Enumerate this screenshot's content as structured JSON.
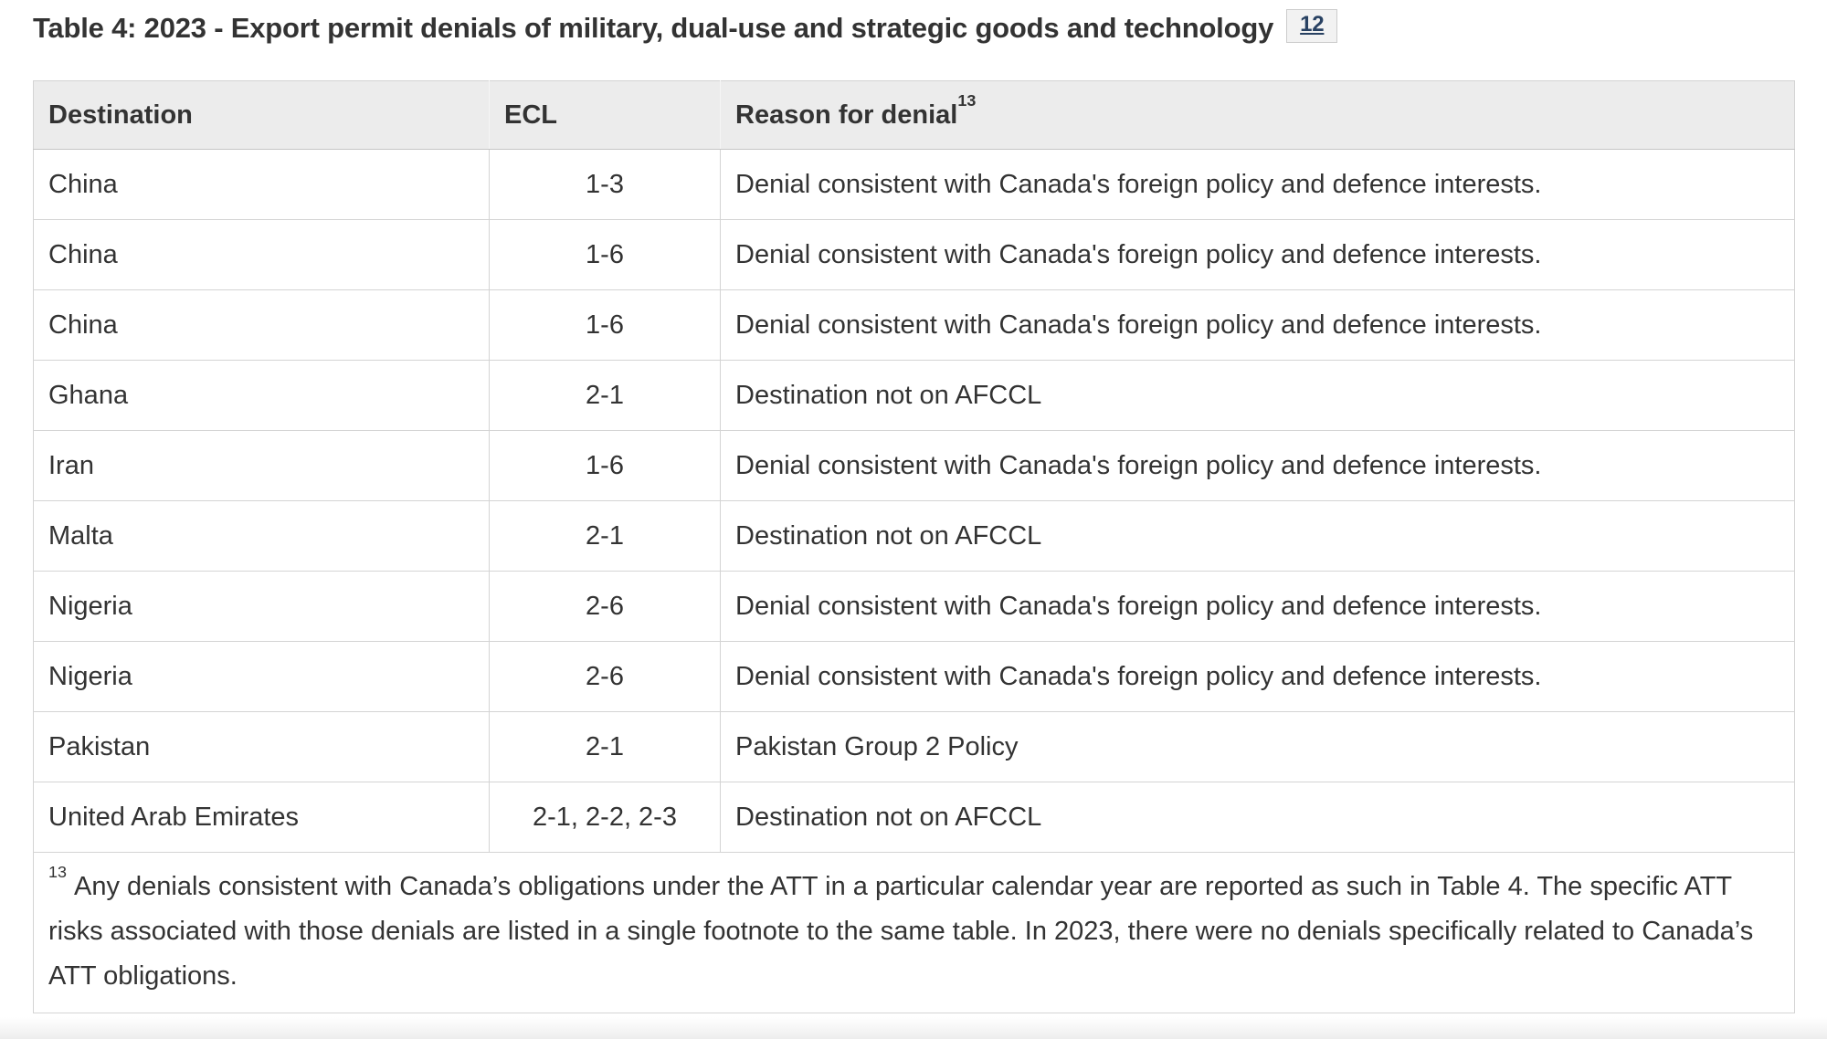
{
  "page": {
    "title": "Table 4: 2023 - Export permit denials of military, dual-use and strategic goods and technology",
    "title_footnote_link": "12"
  },
  "table": {
    "headers": {
      "destination": "Destination",
      "ecl": "ECL",
      "reason": "Reason for denial",
      "reason_sup": "13"
    },
    "rows": [
      {
        "destination": "China",
        "ecl": "1-3",
        "reason": "Denial consistent with Canada's foreign policy and defence interests."
      },
      {
        "destination": "China",
        "ecl": "1-6",
        "reason": "Denial consistent with Canada's foreign policy and defence interests."
      },
      {
        "destination": "China",
        "ecl": "1-6",
        "reason": "Denial consistent with Canada's foreign policy and defence interests."
      },
      {
        "destination": "Ghana",
        "ecl": "2-1",
        "reason": "Destination not on AFCCL"
      },
      {
        "destination": "Iran",
        "ecl": "1-6",
        "reason": "Denial consistent with Canada's foreign policy and defence interests."
      },
      {
        "destination": "Malta",
        "ecl": "2-1",
        "reason": "Destination not on AFCCL"
      },
      {
        "destination": "Nigeria",
        "ecl": "2-6",
        "reason": "Denial consistent with Canada's foreign policy and defence interests."
      },
      {
        "destination": "Nigeria",
        "ecl": "2-6",
        "reason": "Denial consistent with Canada's foreign policy and defence interests."
      },
      {
        "destination": "Pakistan",
        "ecl": "2-1",
        "reason": "Pakistan Group 2 Policy"
      },
      {
        "destination": "United Arab Emirates",
        "ecl": "2-1, 2-2, 2-3",
        "reason": "Destination not on AFCCL"
      }
    ],
    "footnote": {
      "sup": "13",
      "text": "Any denials consistent with Canada’s obligations under the ATT in a particular calendar year are reported as such in Table 4. The specific ATT risks associated with those denials are listed in a single footnote to the same table. In 2023, there were no denials specifically related to Canada’s ATT obligations."
    }
  },
  "colors": {
    "text": "#333333",
    "header_bg": "#ececec",
    "border": "#d4d4d4",
    "footnote_link_text": "#284162",
    "footnote_link_bg": "#f2f2f2"
  }
}
